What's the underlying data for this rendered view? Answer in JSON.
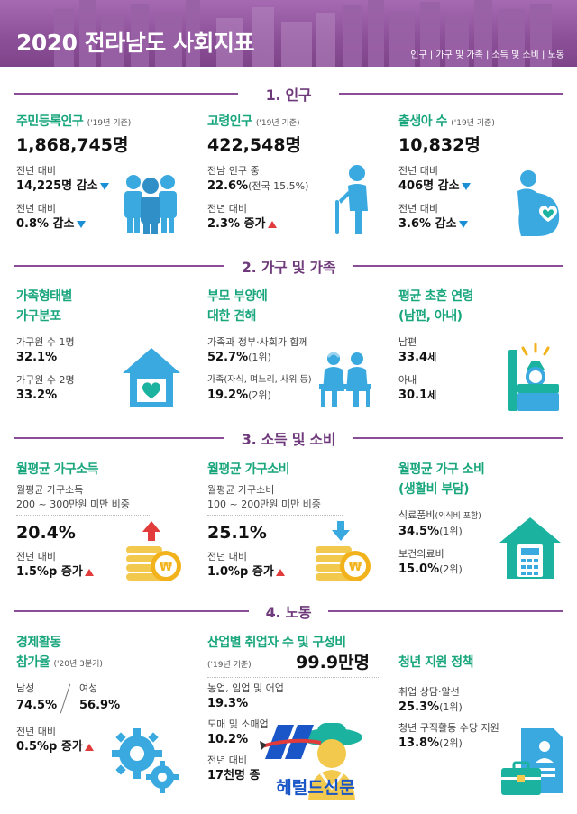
{
  "header": {
    "title": "2020 전라남도 사회지표",
    "tags": "인구 | 가구 및 가족 | 소득 및 소비 | 노동"
  },
  "sections": {
    "s1": "1. 인구",
    "s2": "2. 가구 및 가족",
    "s3": "3. 소득 및 소비",
    "s4": "4. 노동"
  },
  "population": {
    "registered": {
      "title": "주민등록인구",
      "note": "('19년 기준)",
      "value": "1,868,745명",
      "l1": "전년 대비",
      "v1": "14,225명 감소",
      "l2": "전년 대비",
      "v2": "0.8% 감소",
      "icon": "people-group-icon"
    },
    "elderly": {
      "title": "고령인구",
      "note": "('19년 기준)",
      "value": "422,548명",
      "l1": "전남 인구 중",
      "v1": "22.6%",
      "v1note": "(전국 15.5%)",
      "l2": "전년 대비",
      "v2": "2.3% 증가",
      "icon": "elderly-person-icon"
    },
    "births": {
      "title": "출생아 수",
      "note": "('19년 기준)",
      "value": "10,832명",
      "l1": "전년 대비",
      "v1": "406명 감소",
      "l2": "전년 대비",
      "v2": "3.6% 감소",
      "icon": "pregnant-heart-icon"
    }
  },
  "household": {
    "composition": {
      "title1": "가족형태별",
      "title2": "가구분포",
      "l1": "가구원 수 1명",
      "v1": "32.1%",
      "l2": "가구원 수 2명",
      "v2": "33.2%",
      "icon": "house-heart-icon"
    },
    "parents": {
      "title1": "부모 부양에",
      "title2": "대한 견해",
      "l1": "가족과 정부·사회가 함께",
      "v1": "52.7%",
      "v1note": "(1위)",
      "l2": "가족(자식, 며느리, 사위 등)",
      "v2": "19.2%",
      "v2note": "(2위)",
      "icon": "elderly-couple-icon"
    },
    "marriage": {
      "title1": "평균 초혼 연령",
      "title2": "(남편, 아내)",
      "l1": "남편",
      "v1": "33.4",
      "u1": "세",
      "l2": "아내",
      "v2": "30.1",
      "u2": "세",
      "icon": "ring-box-icon"
    }
  },
  "income": {
    "income": {
      "title": "월평균 가구소득",
      "s1": "월평균 가구소득",
      "s2": "200 ~ 300만원 미만 비중",
      "value": "20.4%",
      "l1": "전년 대비",
      "v1": "1.5%p 증가",
      "icon": "coins-up-icon"
    },
    "spending": {
      "title": "월평균 가구소비",
      "s1": "월평균 가구소비",
      "s2": "100 ~ 200만원 미만 비중",
      "value": "25.1%",
      "l1": "전년 대비",
      "v1": "1.0%p 증가",
      "icon": "coins-down-icon"
    },
    "burden": {
      "title1": "월평균 가구 소비",
      "title2": "(생활비 부담)",
      "l1": "식료품비",
      "l1note": "(외식비 포함)",
      "v1": "34.5%",
      "v1note": "(1위)",
      "l2": "보건의료비",
      "v2": "15.0%",
      "v2note": "(2위)",
      "icon": "house-calculator-icon"
    }
  },
  "labor": {
    "participation": {
      "title1": "경제활동",
      "title2": "참가율",
      "note": "('20년 3분기)",
      "l_male": "남성",
      "l_female": "여성",
      "v_male": "74.5%",
      "v_female": "56.9%",
      "l1": "전년 대비",
      "v1": "0.5%p 증가",
      "icon": "gears-icon"
    },
    "industry": {
      "title": "산업별 취업자 수 및 구성비",
      "note": "('19년 기준)",
      "value": "99.9만명",
      "l1": "농업, 임업 및 어업",
      "v1": "19.3%",
      "l2": "도매 및 소매업",
      "v2": "10.2%",
      "l3": "전년 대비",
      "v3": "17천명 증",
      "icon": "farmer-icon",
      "watermark": "헤럴드신문"
    },
    "youth": {
      "title": "청년 지원 정책",
      "l1": "취업 상담·알선",
      "v1": "25.3%",
      "v1note": "(1위)",
      "l2": "청년 구직활동 수당 지원",
      "v2": "13.8%",
      "v2note": "(2위)",
      "icon": "briefcase-document-icon"
    }
  },
  "colors": {
    "accent_purple": "#8b4f97",
    "accent_green": "#1aa67d",
    "icon_blue": "#3aa9e0",
    "icon_teal": "#1bb3a0",
    "up_red": "#e23b3b",
    "down_blue": "#1a8fd6"
  }
}
